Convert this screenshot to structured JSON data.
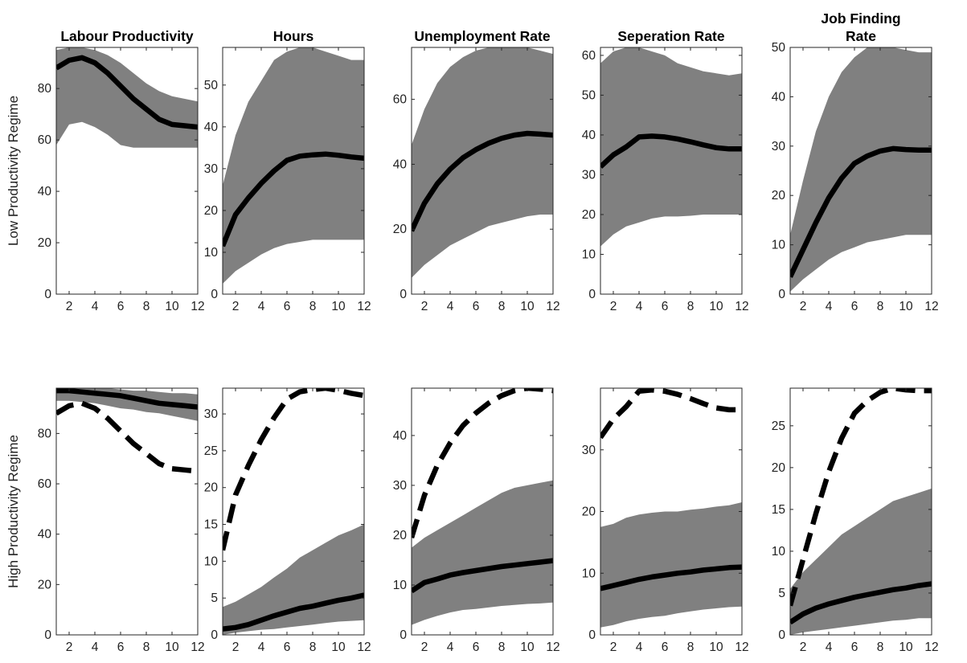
{
  "chart_data": [
    {
      "type": "area",
      "title": [
        "Labour Productivity"
      ],
      "ylabel": "Low Productivity Regime",
      "x": [
        1,
        2,
        3,
        4,
        5,
        6,
        7,
        8,
        9,
        10,
        11,
        12
      ],
      "xticks": [
        2,
        4,
        6,
        8,
        10,
        12
      ],
      "xlim": [
        1,
        12
      ],
      "ylim": [
        0,
        96
      ],
      "yticks": [
        0,
        20,
        40,
        60,
        80
      ],
      "series": [
        {
          "role": "band-upper",
          "values": [
            95,
            96,
            96,
            95,
            93,
            90,
            86,
            82,
            79,
            77,
            76,
            75
          ]
        },
        {
          "role": "band-lower",
          "values": [
            58,
            66,
            67,
            65,
            62,
            58,
            57,
            57,
            57,
            57,
            57,
            57
          ]
        },
        {
          "role": "median",
          "style": "solid",
          "values": [
            88,
            91,
            92,
            90,
            86,
            81,
            76,
            72,
            68,
            66,
            65.5,
            65
          ]
        }
      ]
    },
    {
      "type": "area",
      "title": [
        "Hours"
      ],
      "ylabel": "",
      "x": [
        1,
        2,
        3,
        4,
        5,
        6,
        7,
        8,
        9,
        10,
        11,
        12
      ],
      "xticks": [
        2,
        4,
        6,
        8,
        10,
        12
      ],
      "xlim": [
        1,
        12
      ],
      "ylim": [
        0,
        59
      ],
      "yticks": [
        0,
        10,
        20,
        30,
        40,
        50
      ],
      "series": [
        {
          "role": "band-upper",
          "values": [
            26,
            38,
            46,
            51,
            56,
            58,
            59,
            59,
            58,
            57,
            56,
            56
          ]
        },
        {
          "role": "band-lower",
          "values": [
            2.5,
            5.5,
            7.5,
            9.5,
            11,
            12,
            12.5,
            13,
            13,
            13,
            13,
            13
          ]
        },
        {
          "role": "median",
          "style": "solid",
          "values": [
            11.5,
            19,
            23,
            26.5,
            29.5,
            32,
            33,
            33.3,
            33.5,
            33.2,
            32.8,
            32.5
          ]
        }
      ]
    },
    {
      "type": "area",
      "title": [
        "Unemployment Rate"
      ],
      "ylabel": "",
      "x": [
        1,
        2,
        3,
        4,
        5,
        6,
        7,
        8,
        9,
        10,
        11,
        12
      ],
      "xticks": [
        2,
        4,
        6,
        8,
        10,
        12
      ],
      "xlim": [
        1,
        12
      ],
      "ylim": [
        0,
        76
      ],
      "yticks": [
        0,
        20,
        40,
        60
      ],
      "series": [
        {
          "role": "band-upper",
          "values": [
            46,
            57,
            65,
            70,
            73,
            75,
            76,
            76,
            76,
            76,
            75,
            74
          ]
        },
        {
          "role": "band-lower",
          "values": [
            5,
            9,
            12,
            15,
            17,
            19,
            21,
            22,
            23,
            24,
            24.5,
            24.5
          ]
        },
        {
          "role": "median",
          "style": "solid",
          "values": [
            19.5,
            28,
            34,
            38.5,
            42,
            44.5,
            46.5,
            48,
            49,
            49.5,
            49.3,
            49
          ]
        }
      ]
    },
    {
      "type": "area",
      "title": [
        "Seperation Rate"
      ],
      "ylabel": "",
      "x": [
        1,
        2,
        3,
        4,
        5,
        6,
        7,
        8,
        9,
        10,
        11,
        12
      ],
      "xticks": [
        2,
        4,
        6,
        8,
        10,
        12
      ],
      "xlim": [
        1,
        12
      ],
      "ylim": [
        0,
        62
      ],
      "yticks": [
        0,
        10,
        20,
        30,
        40,
        50,
        60
      ],
      "series": [
        {
          "role": "band-upper",
          "values": [
            58,
            61,
            62,
            62,
            61,
            60,
            58,
            57,
            56,
            55.5,
            55,
            55.5
          ]
        },
        {
          "role": "band-lower",
          "values": [
            12,
            15,
            17,
            18,
            19,
            19.5,
            19.5,
            19.7,
            20,
            20,
            20,
            20
          ]
        },
        {
          "role": "median",
          "style": "solid",
          "values": [
            32,
            35,
            37,
            39.5,
            39.7,
            39.5,
            39,
            38.3,
            37.5,
            36.8,
            36.5,
            36.5
          ]
        }
      ]
    },
    {
      "type": "area",
      "title": [
        "Job Finding",
        "Rate"
      ],
      "ylabel": "",
      "x": [
        1,
        2,
        3,
        4,
        5,
        6,
        7,
        8,
        9,
        10,
        11,
        12
      ],
      "xticks": [
        2,
        4,
        6,
        8,
        10,
        12
      ],
      "xlim": [
        1,
        12
      ],
      "ylim": [
        0,
        50
      ],
      "yticks": [
        0,
        10,
        20,
        30,
        40,
        50
      ],
      "series": [
        {
          "role": "band-upper",
          "values": [
            12,
            23,
            33,
            40,
            45,
            48,
            50,
            50,
            50,
            49.5,
            49,
            49
          ]
        },
        {
          "role": "band-lower",
          "values": [
            0.5,
            3,
            5,
            7,
            8.5,
            9.5,
            10.5,
            11,
            11.5,
            12,
            12,
            12
          ]
        },
        {
          "role": "median",
          "style": "solid",
          "values": [
            3.5,
            9,
            14.5,
            19.5,
            23.5,
            26.5,
            28,
            29,
            29.5,
            29.3,
            29.2,
            29.2
          ]
        }
      ]
    },
    {
      "type": "area",
      "title": [],
      "ylabel": "High Productivity Regime",
      "x": [
        1,
        2,
        3,
        4,
        5,
        6,
        7,
        8,
        9,
        10,
        11,
        12
      ],
      "xticks": [
        2,
        4,
        6,
        8,
        10,
        12
      ],
      "xlim": [
        1,
        12
      ],
      "ylim": [
        0,
        98
      ],
      "yticks": [
        0,
        20,
        40,
        60,
        80
      ],
      "series": [
        {
          "role": "band-upper",
          "values": [
            98,
            98,
            98,
            98,
            98,
            97.5,
            97,
            97,
            96.5,
            96,
            96,
            95.5
          ]
        },
        {
          "role": "band-lower",
          "values": [
            93,
            93,
            92.5,
            92,
            91,
            90,
            89.5,
            88.5,
            88,
            87,
            86,
            85
          ]
        },
        {
          "role": "median",
          "style": "solid",
          "values": [
            97,
            97,
            96.5,
            96,
            95.5,
            95,
            94,
            93,
            92,
            91.5,
            91,
            90.5
          ]
        },
        {
          "role": "low-regime-median",
          "style": "dashed",
          "values": [
            88,
            91,
            92,
            90,
            86,
            81,
            76,
            72,
            68,
            66,
            65.5,
            65
          ]
        }
      ]
    },
    {
      "type": "area",
      "title": [],
      "ylabel": "",
      "x": [
        1,
        2,
        3,
        4,
        5,
        6,
        7,
        8,
        9,
        10,
        11,
        12
      ],
      "xticks": [
        2,
        4,
        6,
        8,
        10,
        12
      ],
      "xlim": [
        1,
        12
      ],
      "ylim": [
        0,
        33.5
      ],
      "yticks": [
        0,
        5,
        10,
        15,
        20,
        25,
        30
      ],
      "series": [
        {
          "role": "band-upper",
          "values": [
            3.8,
            4.5,
            5.5,
            6.5,
            7.8,
            9,
            10.5,
            11.5,
            12.5,
            13.5,
            14.2,
            15
          ]
        },
        {
          "role": "band-lower",
          "values": [
            0,
            0.3,
            0.5,
            0.7,
            0.8,
            1,
            1.2,
            1.4,
            1.6,
            1.8,
            1.9,
            2
          ]
        },
        {
          "role": "median",
          "style": "solid",
          "values": [
            0.8,
            1,
            1.4,
            2,
            2.6,
            3.1,
            3.6,
            3.9,
            4.3,
            4.7,
            5,
            5.4
          ]
        },
        {
          "role": "low-regime-median",
          "style": "dashed",
          "values": [
            11.5,
            19,
            23,
            26.5,
            29.5,
            32,
            33,
            33.3,
            33.5,
            33.2,
            32.8,
            32.5
          ]
        }
      ]
    },
    {
      "type": "area",
      "title": [],
      "ylabel": "",
      "x": [
        1,
        2,
        3,
        4,
        5,
        6,
        7,
        8,
        9,
        10,
        11,
        12
      ],
      "xticks": [
        2,
        4,
        6,
        8,
        10,
        12
      ],
      "xlim": [
        1,
        12
      ],
      "ylim": [
        0,
        49.5
      ],
      "yticks": [
        0,
        10,
        20,
        30,
        40
      ],
      "series": [
        {
          "role": "band-upper",
          "values": [
            17.5,
            19.5,
            21,
            22.5,
            24,
            25.5,
            27,
            28.5,
            29.5,
            30,
            30.5,
            31
          ]
        },
        {
          "role": "band-lower",
          "values": [
            2,
            3,
            3.8,
            4.5,
            5,
            5.2,
            5.5,
            5.8,
            6,
            6.2,
            6.3,
            6.5
          ]
        },
        {
          "role": "median",
          "style": "solid",
          "values": [
            8.8,
            10.5,
            11.2,
            12,
            12.5,
            12.9,
            13.3,
            13.7,
            14,
            14.3,
            14.6,
            14.9
          ]
        },
        {
          "role": "low-regime-median",
          "style": "dashed",
          "values": [
            19.5,
            28,
            34,
            38.5,
            42,
            44.5,
            46.5,
            48,
            49,
            49.5,
            49.3,
            49
          ]
        }
      ]
    },
    {
      "type": "area",
      "title": [],
      "ylabel": "",
      "x": [
        1,
        2,
        3,
        4,
        5,
        6,
        7,
        8,
        9,
        10,
        11,
        12
      ],
      "xticks": [
        2,
        4,
        6,
        8,
        10,
        12
      ],
      "xlim": [
        1,
        12
      ],
      "ylim": [
        0,
        40
      ],
      "yticks": [
        0,
        10,
        20,
        30
      ],
      "series": [
        {
          "role": "band-upper",
          "values": [
            17.5,
            18,
            19,
            19.5,
            19.8,
            20,
            20,
            20.3,
            20.5,
            20.8,
            21,
            21.5
          ]
        },
        {
          "role": "band-lower",
          "values": [
            1.2,
            1.6,
            2.2,
            2.6,
            2.9,
            3.1,
            3.5,
            3.8,
            4.1,
            4.3,
            4.5,
            4.6
          ]
        },
        {
          "role": "median",
          "style": "solid",
          "values": [
            7.5,
            8,
            8.5,
            9,
            9.4,
            9.7,
            10,
            10.2,
            10.5,
            10.7,
            10.9,
            11
          ]
        },
        {
          "role": "low-regime-median",
          "style": "dashed",
          "values": [
            32,
            35,
            37,
            39.5,
            39.7,
            39.5,
            39,
            38.3,
            37.5,
            36.8,
            36.5,
            36.5
          ]
        }
      ]
    },
    {
      "type": "area",
      "title": [],
      "ylabel": "",
      "x": [
        1,
        2,
        3,
        4,
        5,
        6,
        7,
        8,
        9,
        10,
        11,
        12
      ],
      "xticks": [
        2,
        4,
        6,
        8,
        10,
        12
      ],
      "xlim": [
        1,
        12
      ],
      "ylim": [
        0,
        29.5
      ],
      "yticks": [
        0,
        5,
        10,
        15,
        20,
        25
      ],
      "series": [
        {
          "role": "band-upper",
          "values": [
            5.5,
            7.5,
            9,
            10.5,
            12,
            13,
            14,
            15,
            16,
            16.5,
            17,
            17.5
          ]
        },
        {
          "role": "band-lower",
          "values": [
            0,
            0.3,
            0.5,
            0.7,
            0.9,
            1.1,
            1.3,
            1.5,
            1.7,
            1.8,
            2,
            2
          ]
        },
        {
          "role": "median",
          "style": "solid",
          "values": [
            1.5,
            2.5,
            3.2,
            3.7,
            4.1,
            4.5,
            4.8,
            5.1,
            5.4,
            5.6,
            5.9,
            6.1
          ]
        },
        {
          "role": "low-regime-median",
          "style": "dashed",
          "values": [
            3.5,
            9,
            14.5,
            19.5,
            23.5,
            26.5,
            28,
            29,
            29.5,
            29.3,
            29.2,
            29.2
          ]
        }
      ]
    }
  ]
}
